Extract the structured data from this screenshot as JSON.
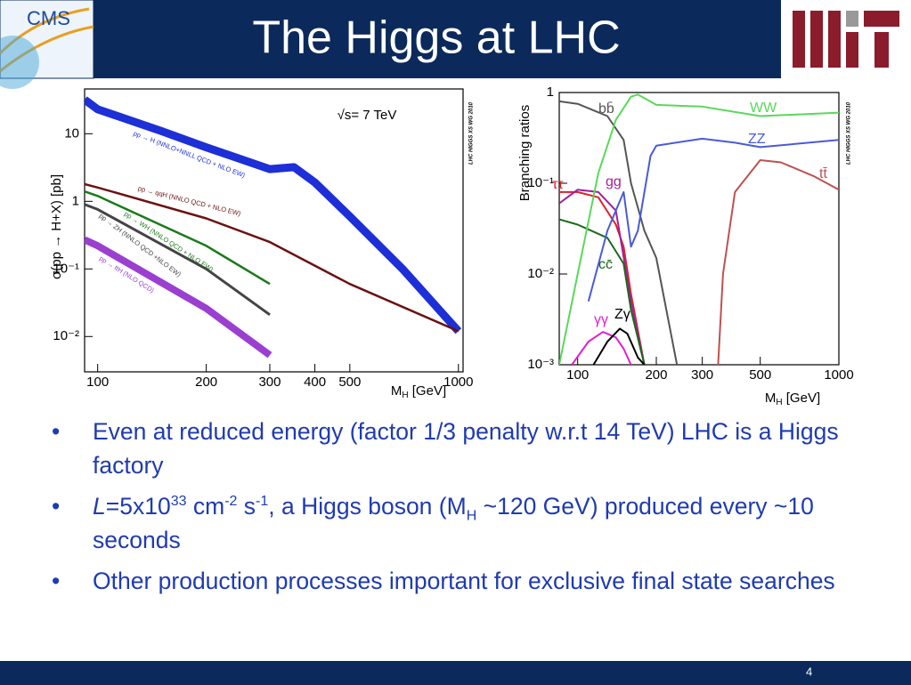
{
  "header": {
    "title": "The Higgs at LHC",
    "logo_text": "CMS"
  },
  "chart_data": [
    {
      "type": "line",
      "log_x": true,
      "log_y": true,
      "y_label": "σ(pp → H+X) [pb]",
      "x_label": [
        "M",
        "H",
        " [GeV]"
      ],
      "annotations": [
        "√s= 7 TeV",
        "LHC HIGGS XS WG 2010"
      ],
      "xlim": [
        92,
        1030
      ],
      "ylim": [
        0.003,
        46
      ],
      "xticks": [
        100,
        200,
        300,
        400,
        500,
        1000
      ],
      "yticks": [
        {
          "value": 0.01,
          "label": "10⁻²"
        },
        {
          "value": 0.1,
          "label": "10⁻¹"
        },
        1,
        10
      ],
      "series": [
        {
          "name": "pp → H (NNLO+NNLL QCD + NLO EW)",
          "color": "#1d2fd6",
          "x": [
            92,
            100,
            150,
            200,
            300,
            350,
            400,
            500,
            700,
            1000
          ],
          "values": [
            32,
            23,
            11,
            6.3,
            3,
            3.2,
            1.9,
            0.6,
            0.1,
            0.012
          ]
        },
        {
          "name": "pp → qqH (NNLO QCD + NLO EW)",
          "color": "#6b1212",
          "x": [
            92,
            100,
            200,
            300,
            500,
            1000
          ],
          "values": [
            1.8,
            1.6,
            0.56,
            0.25,
            0.06,
            0.012
          ]
        },
        {
          "name": "pp → WH (NNLO QCD + NLO EW)",
          "color": "#1a7a1a",
          "x": [
            92,
            100,
            200,
            300
          ],
          "values": [
            1.4,
            1.2,
            0.22,
            0.06
          ]
        },
        {
          "name": "pp → ZH (NNLO QCD +NLO EW)",
          "color": "#444444",
          "x": [
            92,
            100,
            200,
            300
          ],
          "values": [
            0.9,
            0.76,
            0.1,
            0.021
          ]
        },
        {
          "name": "pp → ttH (NLO QCD)",
          "color": "#9a3fd0",
          "x": [
            92,
            100,
            200,
            300
          ],
          "values": [
            0.27,
            0.22,
            0.026,
            0.0053
          ]
        }
      ]
    },
    {
      "type": "line",
      "log_x": true,
      "log_y": true,
      "y_label": "Branching ratios",
      "x_label": [
        "M",
        "H",
        " [GeV]"
      ],
      "annotations": [
        "LHC HIGGS XS WG 2010"
      ],
      "xlim": [
        85,
        1000
      ],
      "ylim": [
        0.001,
        1
      ],
      "xticks": [
        100,
        200,
        300,
        500,
        1000
      ],
      "yticks": [
        {
          "value": 0.001,
          "label": "10⁻³"
        },
        {
          "value": 0.01,
          "label": "10⁻²"
        },
        {
          "value": 0.1,
          "label": "10⁻¹"
        },
        1
      ],
      "series": [
        {
          "name": "bb̄",
          "color": "#555555",
          "x": [
            85,
            100,
            130,
            150,
            160,
            180,
            200,
            240
          ],
          "values": [
            0.8,
            0.75,
            0.55,
            0.3,
            0.1,
            0.03,
            0.015,
            0.001
          ]
        },
        {
          "name": "ττ",
          "color": "#e0202a",
          "x": [
            85,
            100,
            120,
            140,
            150,
            160,
            180
          ],
          "values": [
            0.08,
            0.08,
            0.07,
            0.035,
            0.02,
            0.006,
            0.001
          ]
        },
        {
          "name": "gg",
          "color": "#a0209a",
          "x": [
            85,
            100,
            120,
            140,
            160,
            180
          ],
          "values": [
            0.06,
            0.085,
            0.08,
            0.05,
            0.005,
            0.001
          ]
        },
        {
          "name": "cc̄",
          "color": "#1a6a1a",
          "x": [
            85,
            100,
            130,
            150,
            160,
            180
          ],
          "values": [
            0.04,
            0.035,
            0.025,
            0.013,
            0.004,
            0.001
          ]
        },
        {
          "name": "γγ",
          "color": "#e020d0",
          "x": [
            95,
            110,
            125,
            140,
            150,
            160
          ],
          "values": [
            0.001,
            0.0018,
            0.0023,
            0.002,
            0.0015,
            0.001
          ]
        },
        {
          "name": "Zγ",
          "color": "#000000",
          "x": [
            115,
            130,
            145,
            155,
            170,
            180
          ],
          "values": [
            0.001,
            0.0018,
            0.0025,
            0.0022,
            0.0012,
            0.001
          ]
        },
        {
          "name": "WW",
          "color": "#5ad85a",
          "x": [
            85,
            100,
            120,
            140,
            160,
            170,
            200,
            300,
            500,
            1000
          ],
          "values": [
            0.001,
            0.01,
            0.13,
            0.5,
            0.9,
            0.95,
            0.73,
            0.7,
            0.55,
            0.6
          ]
        },
        {
          "name": "ZZ",
          "color": "#4a5ad8",
          "x": [
            110,
            130,
            150,
            160,
            170,
            190,
            200,
            300,
            400,
            500,
            1000
          ],
          "values": [
            0.005,
            0.03,
            0.08,
            0.02,
            0.03,
            0.2,
            0.26,
            0.31,
            0.28,
            0.25,
            0.3
          ]
        },
        {
          "name": "tt̄",
          "color": "#c05050",
          "x": [
            345,
            360,
            400,
            500,
            600,
            800,
            1000
          ],
          "values": [
            0.001,
            0.01,
            0.08,
            0.18,
            0.17,
            0.12,
            0.085
          ]
        }
      ]
    }
  ],
  "bullets": [
    [
      "Even at reduced energy (factor 1/3 penalty w.r.t 14 TeV) LHC is a Higgs factory"
    ],
    [
      "L",
      "=5x10",
      "33",
      " cm",
      "-2",
      " s",
      "-1",
      ", a Higgs boson (M",
      "H",
      " ~120 GeV) produced every ~10 seconds"
    ],
    [
      "Other production processes important for exclusive final state searches"
    ]
  ],
  "footer": {
    "page": "4"
  }
}
